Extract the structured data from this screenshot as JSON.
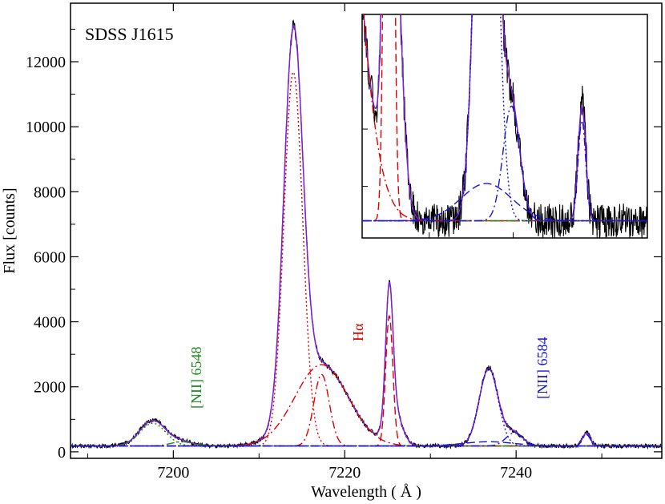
{
  "chart_data": {
    "type": "line",
    "title": "SDSS J1615",
    "xlabel": "Wavelength  ( Å )",
    "ylabel": "Flux [counts]",
    "xlim": [
      7188,
      7257
    ],
    "ylim": [
      -200,
      13800
    ],
    "xticks": [
      7200,
      7220,
      7240
    ],
    "yticks": [
      0,
      2000,
      4000,
      6000,
      8000,
      10000,
      12000
    ],
    "annotations": [
      {
        "text": "[NII] 6548",
        "color": "#1a8a1a"
      },
      {
        "text": "Hα",
        "color": "#e00000"
      },
      {
        "text": "[NII] 6584",
        "color": "#1414e0"
      }
    ],
    "inset": {
      "xlim": [
        7222,
        7256
      ],
      "ylim": [
        120,
        900
      ]
    },
    "continuum": 180,
    "series": [
      {
        "name": "observed",
        "color": "#000000",
        "dash": "solid",
        "lines": [
          [
            7197.6,
            800,
            1.5
          ],
          [
            7201,
            130,
            1.3
          ],
          [
            7214,
            11500,
            1.1
          ],
          [
            7217.3,
            2500,
            3.1
          ],
          [
            7225.2,
            4000,
            0.42
          ],
          [
            7225.7,
            1100,
            0.9
          ],
          [
            7236.8,
            2400,
            1.1
          ],
          [
            7239.8,
            400,
            1.0
          ],
          [
            7248.2,
            420,
            0.45
          ]
        ],
        "noise": 60
      },
      {
        "name": "total-fit",
        "color": "#cc44cc",
        "dash": "12,6",
        "lines": [
          [
            7197.6,
            780,
            1.5
          ],
          [
            7201,
            130,
            1.3
          ],
          [
            7214,
            11500,
            1.1
          ],
          [
            7217.3,
            2500,
            3.1
          ],
          [
            7225.2,
            4000,
            0.42
          ],
          [
            7225.7,
            1100,
            0.9
          ],
          [
            7236.8,
            2380,
            1.1
          ],
          [
            7239.8,
            400,
            1.0
          ],
          [
            7248.2,
            400,
            0.45
          ]
        ]
      },
      {
        "name": "total-fit-purple",
        "color": "#7a1fd6",
        "dash": "solid",
        "lines": [
          [
            7197.6,
            780,
            1.5
          ],
          [
            7201,
            130,
            1.3
          ],
          [
            7214,
            11500,
            1.1
          ],
          [
            7217.3,
            2500,
            3.1
          ],
          [
            7225.2,
            4000,
            0.42
          ],
          [
            7225.7,
            1100,
            0.9
          ],
          [
            7236.8,
            2380,
            1.1
          ],
          [
            7239.8,
            400,
            1.0
          ],
          [
            7248.2,
            400,
            0.45
          ]
        ]
      },
      {
        "name": "halpha-narrow",
        "color": "#e00000",
        "dash": "2,3",
        "lines": [
          [
            7214,
            11500,
            1.1
          ]
        ]
      },
      {
        "name": "halpha-broad",
        "color": "#e00000",
        "dash": "10,4,2,4",
        "lines": [
          [
            7217.3,
            2500,
            3.1
          ]
        ]
      },
      {
        "name": "halpha-narrow-2",
        "color": "#e00000",
        "dash": "10,4,2,4",
        "lines": [
          [
            7217.3,
            2200,
            0.9
          ]
        ]
      },
      {
        "name": "halpha-narrow-3",
        "color": "#e00000",
        "dash": "10,5",
        "lines": [
          [
            7225.2,
            4000,
            0.42
          ]
        ]
      },
      {
        "name": "nii-6548",
        "color": "#1a8a1a",
        "dash": "2,3",
        "lines": [
          [
            7197.6,
            700,
            1.5
          ]
        ]
      },
      {
        "name": "nii-6548-b",
        "color": "#1a8a1a",
        "dash": "10,4,2,4",
        "lines": [
          [
            7201,
            130,
            1.3
          ]
        ]
      },
      {
        "name": "nii-6584",
        "color": "#1414e0",
        "dash": "2,3",
        "lines": [
          [
            7236.8,
            2380,
            1.1
          ]
        ]
      },
      {
        "name": "nii-6584-b",
        "color": "#1414e0",
        "dash": "10,4,2,4",
        "lines": [
          [
            7239.8,
            400,
            1.0
          ],
          [
            7248.2,
            350,
            0.45
          ]
        ]
      },
      {
        "name": "nii-6584-c",
        "color": "#1414e0",
        "dash": "10,5",
        "lines": [
          [
            7236.8,
            130,
            3.0
          ]
        ]
      }
    ]
  }
}
